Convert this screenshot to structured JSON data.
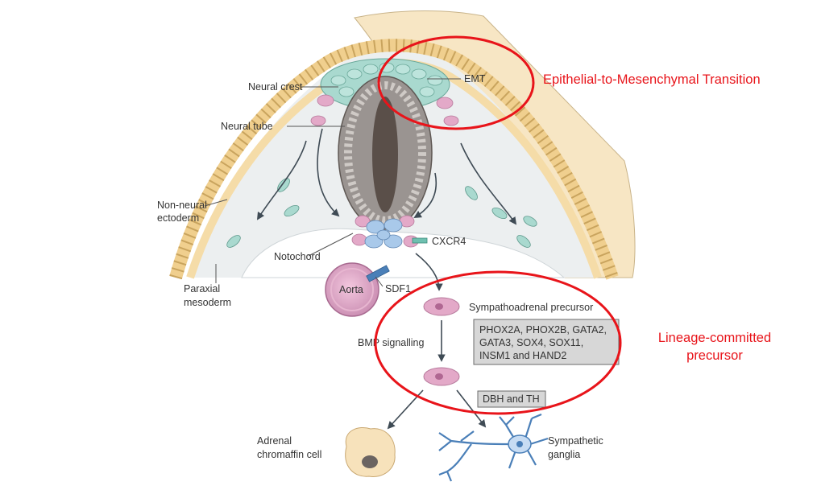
{
  "labels": {
    "neural_crest": "Neural crest",
    "neural_tube": "Neural tube",
    "non_neural_line1": "Non-neural",
    "non_neural_line2": "ectoderm",
    "paraxial_line1": "Paraxial",
    "paraxial_line2": "mesoderm",
    "notochord": "Notochord",
    "aorta": "Aorta",
    "sdf1": "SDF1",
    "cxcr4": "CXCR4",
    "emt": "EMT",
    "sympathoadrenal": "Sympathoadrenal precursor",
    "bmp": "BMP signalling",
    "adrenal_line1": "Adrenal",
    "adrenal_line2": "chromaffin cell",
    "sympathetic_line1": "Sympathetic",
    "sympathetic_line2": "ganglia"
  },
  "markers": {
    "line1": "PHOX2A, PHOX2B, GATA2,",
    "line2": "GATA3, SOX4, SOX11,",
    "line3": "INSM1 and HAND2",
    "dbh": "DBH and TH"
  },
  "annotations": {
    "emt_full": "Epithelial-to-Mesenchymal Transition",
    "lineage_line1": "Lineage-committed",
    "lineage_line2": "precursor"
  },
  "colors": {
    "annotation_red": "#e8141a",
    "neural_crest_cell": "#a9d9cf",
    "ectoderm_cell": "#f4d9a0",
    "pink_cell": "#e3a9c8",
    "notochord_cell": "#a9c9ea",
    "background_tissue": "#f7e6c4"
  }
}
